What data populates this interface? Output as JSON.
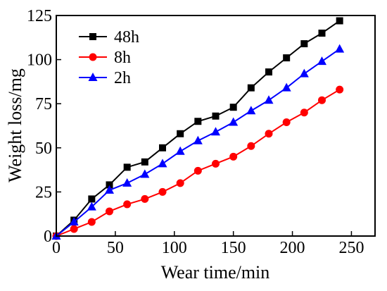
{
  "chart_data": {
    "type": "line",
    "title": "",
    "xlabel": "Wear time/min",
    "ylabel": "Weight loss/mg",
    "xlim": [
      0,
      270
    ],
    "ylim": [
      0,
      125
    ],
    "xticks": [
      0,
      50,
      100,
      150,
      200,
      250
    ],
    "yticks": [
      0,
      25,
      50,
      75,
      100,
      125
    ],
    "grid": false,
    "legend_position": "top-left",
    "series": [
      {
        "name": "48h",
        "color": "#000000",
        "marker": "square",
        "x": [
          0,
          15,
          30,
          45,
          60,
          75,
          90,
          105,
          120,
          135,
          150,
          165,
          180,
          195,
          210,
          225,
          240
        ],
        "y": [
          0,
          9,
          21,
          29,
          39,
          42,
          50,
          58,
          65,
          68,
          73,
          84,
          93,
          101,
          109,
          115,
          122
        ]
      },
      {
        "name": "8h",
        "color": "#ff0000",
        "marker": "circle",
        "x": [
          0,
          15,
          30,
          45,
          60,
          75,
          90,
          105,
          120,
          135,
          150,
          165,
          180,
          195,
          210,
          225,
          240
        ],
        "y": [
          0,
          4,
          8,
          14,
          18,
          21,
          25,
          30,
          37,
          41,
          45,
          51,
          58,
          64.5,
          70,
          77,
          83
        ]
      },
      {
        "name": "2h",
        "color": "#0000ff",
        "marker": "triangle",
        "x": [
          0,
          15,
          30,
          45,
          60,
          75,
          90,
          105,
          120,
          135,
          150,
          165,
          180,
          195,
          210,
          225,
          240
        ],
        "y": [
          0,
          8,
          16.5,
          26,
          30,
          35,
          41,
          48,
          54,
          59,
          64.5,
          71,
          77,
          84,
          92,
          99,
          106
        ]
      }
    ]
  }
}
